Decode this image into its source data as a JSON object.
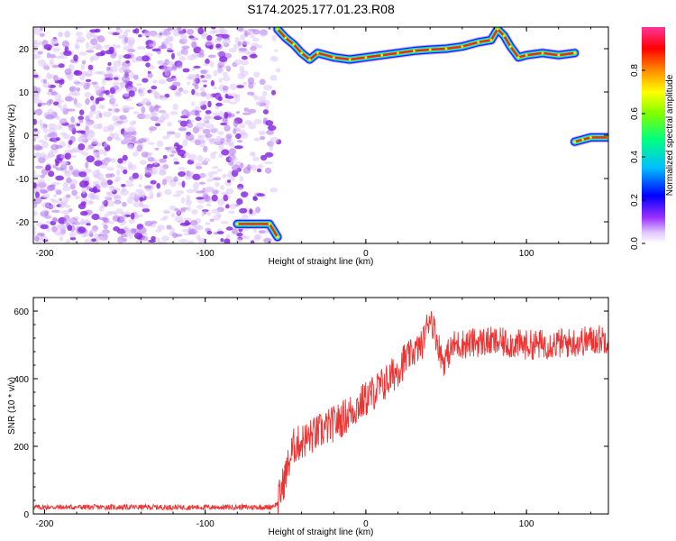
{
  "title": "S174.2025.177.01.23.R08",
  "chart_data": [
    {
      "type": "heatmap",
      "xlabel": "Height of straight line (km)",
      "ylabel": "Frequency (Hz)",
      "xlim": [
        -207,
        151
      ],
      "ylim": [
        -25,
        25
      ],
      "xticks": [
        -200,
        -100,
        0,
        100
      ],
      "yticks": [
        -20,
        -10,
        0,
        10,
        20
      ],
      "colorbar": {
        "label": "Normalized spectral amplitude",
        "range": [
          0,
          1
        ],
        "ticks": [
          0.0,
          0.2,
          0.4,
          0.6,
          0.8
        ],
        "colormap": [
          "#ffffff",
          "#d8b8f8",
          "#8a2be2",
          "#0000ff",
          "#00c8ff",
          "#00ff00",
          "#ffff00",
          "#ff8c00",
          "#ff0000",
          "#ff33cc"
        ]
      },
      "noise_region": {
        "x_range": [
          -207,
          -54
        ],
        "amplitude_range": [
          0.0,
          0.15
        ]
      },
      "signal_track": [
        {
          "x": -55,
          "freq": 24.5
        },
        {
          "x": -50,
          "freq": 22.5
        },
        {
          "x": -45,
          "freq": 21
        },
        {
          "x": -40,
          "freq": 19
        },
        {
          "x": -35,
          "freq": 17.5
        },
        {
          "x": -30,
          "freq": 19
        },
        {
          "x": -20,
          "freq": 18
        },
        {
          "x": -10,
          "freq": 17.5
        },
        {
          "x": 0,
          "freq": 18
        },
        {
          "x": 10,
          "freq": 18.5
        },
        {
          "x": 20,
          "freq": 19
        },
        {
          "x": 30,
          "freq": 19.5
        },
        {
          "x": 40,
          "freq": 19.8
        },
        {
          "x": 50,
          "freq": 20
        },
        {
          "x": 60,
          "freq": 20.5
        },
        {
          "x": 70,
          "freq": 21.5
        },
        {
          "x": 78,
          "freq": 22
        },
        {
          "x": 82,
          "freq": 24.5
        },
        {
          "x": 86,
          "freq": 23
        },
        {
          "x": 90,
          "freq": 20.5
        },
        {
          "x": 95,
          "freq": 18
        },
        {
          "x": 100,
          "freq": 18.5
        },
        {
          "x": 110,
          "freq": 19
        },
        {
          "x": 120,
          "freq": 18.5
        },
        {
          "x": 130,
          "freq": 19
        }
      ],
      "aliased_track": [
        {
          "x": 130,
          "freq": -1.5
        },
        {
          "x": 135,
          "freq": -1
        },
        {
          "x": 140,
          "freq": -0.5
        },
        {
          "x": 151,
          "freq": -0.5
        }
      ],
      "low_track": [
        {
          "x": -80,
          "freq": -20.5
        },
        {
          "x": -60,
          "freq": -20.5
        },
        {
          "x": -55,
          "freq": -23.5
        }
      ]
    },
    {
      "type": "line",
      "xlabel": "Height of straight line (km)",
      "ylabel": "SNR (10 * v/v)",
      "xlim": [
        -207,
        151
      ],
      "ylim": [
        0,
        640
      ],
      "xticks": [
        -200,
        -100,
        0,
        100
      ],
      "yticks": [
        0,
        200,
        400,
        600
      ],
      "color": "#ee3333",
      "series": [
        {
          "values_trend": [
            {
              "x": -207,
              "y": 20
            },
            {
              "x": -100,
              "y": 20
            },
            {
              "x": -60,
              "y": 20
            },
            {
              "x": -55,
              "y": 30
            },
            {
              "x": -45,
              "y": 200
            },
            {
              "x": -30,
              "y": 240
            },
            {
              "x": -15,
              "y": 280
            },
            {
              "x": 0,
              "y": 340
            },
            {
              "x": 15,
              "y": 400
            },
            {
              "x": 25,
              "y": 460
            },
            {
              "x": 35,
              "y": 500
            },
            {
              "x": 40,
              "y": 590
            },
            {
              "x": 44,
              "y": 520
            },
            {
              "x": 48,
              "y": 450
            },
            {
              "x": 55,
              "y": 500
            },
            {
              "x": 75,
              "y": 510
            },
            {
              "x": 100,
              "y": 500
            },
            {
              "x": 125,
              "y": 505
            },
            {
              "x": 151,
              "y": 520
            }
          ]
        }
      ]
    }
  ]
}
